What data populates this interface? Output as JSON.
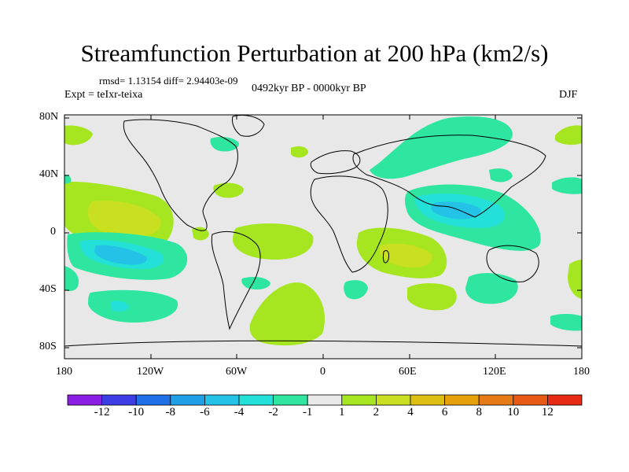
{
  "title": "Streamfunction Perturbation at 200 hPa (km2/s)",
  "stats": "rmsd= 1.13154 diff= 2.94403e-09",
  "experiment": "Expt = teIxr-teixa",
  "period": "0492kyr BP - 0000kyr BP",
  "season": "DJF",
  "y_ticks": [
    "80N",
    "40N",
    "0",
    "40S",
    "80S"
  ],
  "x_ticks": [
    "180",
    "120W",
    "60W",
    "0",
    "60E",
    "120E",
    "180"
  ],
  "colorbar": {
    "colors": [
      "#8c1fe6",
      "#3d3de6",
      "#1f6fe6",
      "#1fa0e6",
      "#23c2e6",
      "#23e0d8",
      "#2ee6a0",
      "#e8e8e8",
      "#a5e620",
      "#c8e020",
      "#dcbf10",
      "#e6a00a",
      "#e67a14",
      "#e65a14",
      "#e62a14"
    ],
    "labels": [
      "-12",
      "-10",
      "-8",
      "-6",
      "-4",
      "-2",
      "-1",
      "1",
      "2",
      "4",
      "6",
      "8",
      "10",
      "12"
    ]
  },
  "anomaly_colors": {
    "neutral": "#e8e8e8",
    "pos1": "#a5e620",
    "pos2": "#c8e020",
    "pos3": "#dcbf10",
    "neg1": "#2ee6a0",
    "neg2": "#23e0d8",
    "neg3": "#23c2e6",
    "neg4": "#1fa0e6"
  }
}
